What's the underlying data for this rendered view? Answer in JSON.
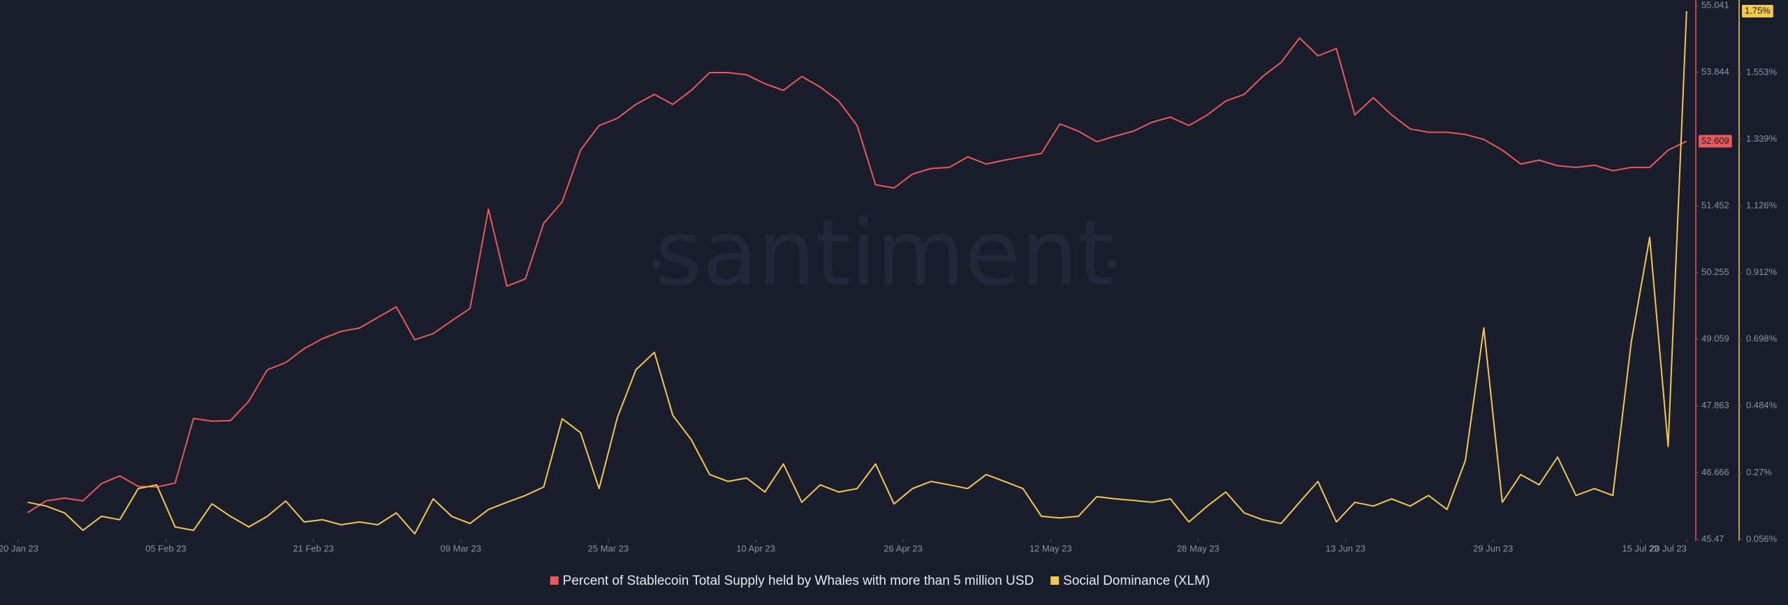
{
  "chart_data": {
    "type": "line",
    "watermark": "santiment",
    "x": [
      "2023-01-21",
      "2023-01-23",
      "2023-01-25",
      "2023-01-27",
      "2023-01-29",
      "2023-01-31",
      "2023-02-02",
      "2023-02-04",
      "2023-02-06",
      "2023-02-08",
      "2023-02-10",
      "2023-02-12",
      "2023-02-14",
      "2023-02-16",
      "2023-02-18",
      "2023-02-20",
      "2023-02-22",
      "2023-02-24",
      "2023-02-26",
      "2023-02-28",
      "2023-03-02",
      "2023-03-04",
      "2023-03-06",
      "2023-03-08",
      "2023-03-10",
      "2023-03-12",
      "2023-03-14",
      "2023-03-16",
      "2023-03-18",
      "2023-03-20",
      "2023-03-22",
      "2023-03-24",
      "2023-03-26",
      "2023-03-28",
      "2023-03-30",
      "2023-04-01",
      "2023-04-03",
      "2023-04-05",
      "2023-04-07",
      "2023-04-09",
      "2023-04-11",
      "2023-04-13",
      "2023-04-15",
      "2023-04-17",
      "2023-04-19",
      "2023-04-21",
      "2023-04-23",
      "2023-04-25",
      "2023-04-27",
      "2023-04-29",
      "2023-05-01",
      "2023-05-03",
      "2023-05-05",
      "2023-05-07",
      "2023-05-09",
      "2023-05-11",
      "2023-05-13",
      "2023-05-15",
      "2023-05-17",
      "2023-05-19",
      "2023-05-21",
      "2023-05-23",
      "2023-05-25",
      "2023-05-27",
      "2023-05-29",
      "2023-05-31",
      "2023-06-02",
      "2023-06-04",
      "2023-06-06",
      "2023-06-08",
      "2023-06-10",
      "2023-06-12",
      "2023-06-14",
      "2023-06-16",
      "2023-06-18",
      "2023-06-20",
      "2023-06-22",
      "2023-06-24",
      "2023-06-26",
      "2023-06-28",
      "2023-06-30",
      "2023-07-02",
      "2023-07-04",
      "2023-07-06",
      "2023-07-08",
      "2023-07-10",
      "2023-07-12",
      "2023-07-14",
      "2023-07-16",
      "2023-07-18",
      "2023-07-20"
    ],
    "xlim": [
      "2023-01-18",
      "2023-07-21"
    ],
    "xticks": [
      {
        "value": "2023-01-20",
        "label": "20 Jan 23"
      },
      {
        "value": "2023-02-05",
        "label": "05 Feb 23"
      },
      {
        "value": "2023-02-21",
        "label": "21 Feb 23"
      },
      {
        "value": "2023-03-09",
        "label": "09 Mar 23"
      },
      {
        "value": "2023-03-25",
        "label": "25 Mar 23"
      },
      {
        "value": "2023-04-10",
        "label": "10 Apr 23"
      },
      {
        "value": "2023-04-26",
        "label": "26 Apr 23"
      },
      {
        "value": "2023-05-12",
        "label": "12 May 23"
      },
      {
        "value": "2023-05-28",
        "label": "28 May 23"
      },
      {
        "value": "2023-06-13",
        "label": "13 Jun 23"
      },
      {
        "value": "2023-06-29",
        "label": "29 Jun 23"
      },
      {
        "value": "2023-07-15",
        "label": "15 Jul 23"
      },
      {
        "value": "2023-07-20",
        "label": "20 Jul 23"
      }
    ],
    "ylim": [
      45.47,
      55.041
    ],
    "yticks": [
      45.47,
      46.666,
      47.863,
      49.059,
      50.255,
      51.452,
      53.844,
      55.041
    ],
    "y2lim": [
      0.056,
      1.768
    ],
    "y2ticks": [
      {
        "value": 0.056,
        "label": "0.056%"
      },
      {
        "value": 0.27,
        "label": "0.27%"
      },
      {
        "value": 0.484,
        "label": "0.484%"
      },
      {
        "value": 0.698,
        "label": "0.698%"
      },
      {
        "value": 0.912,
        "label": "0.912%"
      },
      {
        "value": 1.126,
        "label": "1.126%"
      },
      {
        "value": 1.339,
        "label": "1.339%"
      },
      {
        "value": 1.553,
        "label": "1.553%"
      }
    ],
    "grid": false,
    "legend": "bottom",
    "series": [
      {
        "name": "Percent of Stablecoin Total Supply held by Whales with more than 5 million USD",
        "color": "#e85a5a",
        "axis": "y",
        "last_label": "52.609",
        "values": [
          45.95,
          46.16,
          46.21,
          46.16,
          46.47,
          46.61,
          46.42,
          46.41,
          46.48,
          47.64,
          47.59,
          47.6,
          47.95,
          48.51,
          48.64,
          48.89,
          49.07,
          49.2,
          49.26,
          49.45,
          49.64,
          49.05,
          49.16,
          49.39,
          49.61,
          51.39,
          50.01,
          50.14,
          51.14,
          51.52,
          52.45,
          52.89,
          53.02,
          53.27,
          53.45,
          53.27,
          53.52,
          53.84,
          53.84,
          53.8,
          53.64,
          53.52,
          53.77,
          53.58,
          53.33,
          52.89,
          51.83,
          51.77,
          52.02,
          52.12,
          52.14,
          52.33,
          52.2,
          52.27,
          52.33,
          52.39,
          52.92,
          52.79,
          52.6,
          52.7,
          52.79,
          52.95,
          53.04,
          52.89,
          53.08,
          53.33,
          53.45,
          53.77,
          54.02,
          54.46,
          54.14,
          54.27,
          53.08,
          53.39,
          53.08,
          52.83,
          52.77,
          52.77,
          52.73,
          52.64,
          52.45,
          52.2,
          52.27,
          52.17,
          52.14,
          52.18,
          52.08,
          52.14,
          52.14,
          52.45,
          52.609
        ]
      },
      {
        "name": "Social Dominance (XLM)",
        "color": "#f2c94c",
        "axis": "y2",
        "last_label": "1.75%",
        "values": [
          0.175,
          0.163,
          0.141,
          0.085,
          0.13,
          0.119,
          0.219,
          0.231,
          0.096,
          0.085,
          0.17,
          0.13,
          0.096,
          0.13,
          0.179,
          0.112,
          0.119,
          0.103,
          0.112,
          0.103,
          0.141,
          0.074,
          0.186,
          0.13,
          0.107,
          0.152,
          0.175,
          0.197,
          0.224,
          0.443,
          0.398,
          0.219,
          0.448,
          0.6,
          0.656,
          0.454,
          0.376,
          0.264,
          0.242,
          0.253,
          0.208,
          0.298,
          0.175,
          0.231,
          0.208,
          0.219,
          0.298,
          0.17,
          0.219,
          0.242,
          0.231,
          0.219,
          0.264,
          0.242,
          0.219,
          0.13,
          0.125,
          0.13,
          0.193,
          0.186,
          0.181,
          0.175,
          0.186,
          0.112,
          0.163,
          0.208,
          0.141,
          0.119,
          0.107,
          0.175,
          0.242,
          0.112,
          0.175,
          0.163,
          0.186,
          0.163,
          0.197,
          0.152,
          0.309,
          0.734,
          0.175,
          0.264,
          0.231,
          0.32,
          0.197,
          0.219,
          0.197,
          0.689,
          1.025,
          0.354,
          1.75
        ]
      }
    ]
  }
}
